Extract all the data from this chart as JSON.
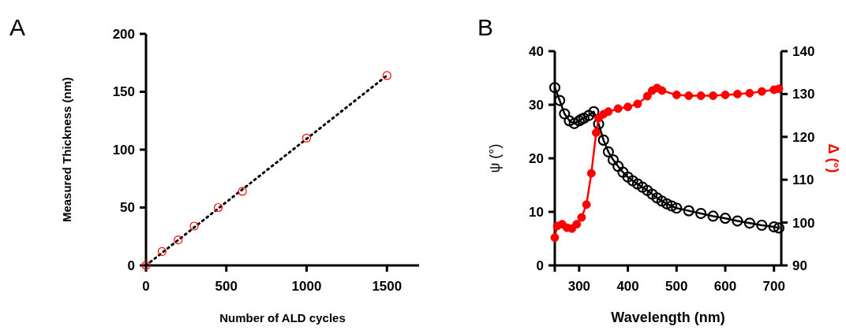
{
  "chart_data": [
    {
      "type": "scatter",
      "title": "A",
      "xlabel": "Number of ALD cycles",
      "ylabel": "Measured Thickness (nm)",
      "xlim": [
        0,
        1700
      ],
      "ylim": [
        0,
        200
      ],
      "xticks": [
        0,
        500,
        1000,
        1500
      ],
      "yticks": [
        0,
        50,
        100,
        150,
        200
      ],
      "series": [
        {
          "type": "line",
          "color": "#000000",
          "x": [
            0,
            1500
          ],
          "values": [
            0,
            164
          ],
          "line_style": "dotted",
          "marker": "none"
        },
        {
          "color": "#ff0000",
          "x": [
            0,
            100,
            200,
            300,
            450,
            600,
            1000,
            1500
          ],
          "values": [
            0,
            12,
            22,
            34,
            50,
            64,
            110,
            164
          ],
          "marker": "circle"
        }
      ]
    },
    {
      "type": "line",
      "title": "B",
      "xlabel": "Wavelength (nm)",
      "ylabel": "ψ (°)",
      "y2label": "Δ (°)",
      "xlim": [
        250,
        715
      ],
      "ylim": [
        0,
        40
      ],
      "y2lim": [
        90,
        140
      ],
      "xticks": [
        {
          "value": 250,
          "label": null
        },
        300,
        400,
        500,
        600,
        700
      ],
      "yticks": [
        0,
        10,
        20,
        30,
        40
      ],
      "y2ticks": [
        90,
        100,
        110,
        120,
        130,
        140
      ],
      "marker": "circle",
      "series": [
        {
          "color": "#000000",
          "x": [
            250,
            260,
            270,
            280,
            290,
            300,
            305,
            310,
            320,
            330,
            340,
            350,
            360,
            370,
            380,
            390,
            400,
            410,
            420,
            430,
            440,
            450,
            460,
            470,
            480,
            490,
            500,
            525,
            550,
            575,
            600,
            625,
            650,
            675,
            700,
            710
          ],
          "values": [
            33.2,
            30.8,
            28.3,
            27.0,
            26.5,
            27.0,
            27.3,
            27.5,
            28.0,
            28.7,
            26.4,
            23.4,
            21.2,
            19.7,
            18.5,
            17.4,
            16.5,
            15.8,
            15.2,
            14.6,
            14.0,
            13.3,
            12.6,
            12.0,
            11.5,
            11.1,
            10.7,
            10.2,
            9.7,
            9.2,
            8.8,
            8.3,
            7.9,
            7.5,
            7.2,
            7.0
          ]
        },
        {
          "color": "#ff0000",
          "axis": "y2",
          "x": [
            250,
            255,
            265,
            275,
            285,
            295,
            305,
            315,
            325,
            335,
            340,
            350,
            360,
            380,
            400,
            420,
            440,
            450,
            460,
            470,
            500,
            525,
            550,
            575,
            600,
            625,
            650,
            675,
            700,
            710
          ],
          "values": [
            96.5,
            99.2,
            99.6,
            98.8,
            98.6,
            99.6,
            101.2,
            104.2,
            111.5,
            121.0,
            124.4,
            125.3,
            125.9,
            126.6,
            127.0,
            127.7,
            129.5,
            130.8,
            131.4,
            130.8,
            129.8,
            129.6,
            129.6,
            129.6,
            129.8,
            130.0,
            130.2,
            130.6,
            131.0,
            131.2
          ]
        }
      ]
    }
  ]
}
